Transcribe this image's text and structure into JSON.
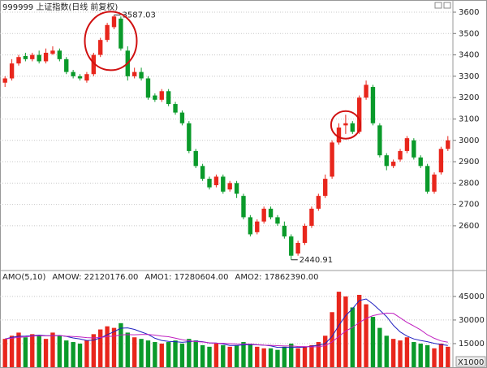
{
  "chart_data": [
    {
      "type": "candlestick",
      "title": "999999 上证指数(日线 前复权)",
      "open": [
        3270,
        3290,
        3360,
        3395,
        3380,
        3400,
        3370,
        3405,
        3420,
        3380,
        3320,
        3300,
        3280,
        3310,
        3400,
        3470,
        3530,
        3570,
        3420,
        3300,
        3320,
        3290,
        3210,
        3190,
        3230,
        3170,
        3130,
        3080,
        2950,
        2880,
        2820,
        2790,
        2830,
        2770,
        2800,
        2740,
        2640,
        2570,
        2620,
        2680,
        2640,
        2600,
        2550,
        2470,
        2520,
        2600,
        2680,
        2740,
        2830,
        2990,
        3070,
        3080,
        3040,
        3200,
        3250,
        3070,
        2930,
        2880,
        2910,
        2950,
        3000,
        2920,
        2880,
        2760,
        2850,
        2960
      ],
      "high": [
        3300,
        3380,
        3400,
        3410,
        3410,
        3420,
        3430,
        3440,
        3430,
        3390,
        3330,
        3310,
        3320,
        3410,
        3480,
        3550,
        3587.03,
        3580,
        3440,
        3340,
        3340,
        3300,
        3220,
        3240,
        3240,
        3180,
        3140,
        3090,
        2960,
        2890,
        2830,
        2840,
        2840,
        2810,
        2810,
        2750,
        2650,
        2630,
        2690,
        2690,
        2650,
        2620,
        2560,
        2530,
        2610,
        2690,
        2750,
        2840,
        3000,
        3080,
        3120,
        3090,
        3210,
        3280,
        3260,
        3080,
        2940,
        2910,
        2960,
        3020,
        3010,
        2930,
        2890,
        2850,
        2970,
        3020
      ],
      "low": [
        3250,
        3280,
        3350,
        3370,
        3370,
        3360,
        3360,
        3400,
        3370,
        3310,
        3290,
        3280,
        3270,
        3300,
        3390,
        3460,
        3520,
        3420,
        3280,
        3290,
        3280,
        3190,
        3180,
        3180,
        3160,
        3120,
        3070,
        2940,
        2870,
        2810,
        2770,
        2780,
        2750,
        2760,
        2730,
        2630,
        2550,
        2560,
        2610,
        2630,
        2600,
        2540,
        2440.91,
        2460,
        2510,
        2590,
        2670,
        2730,
        2820,
        2980,
        3030,
        3030,
        3030,
        3190,
        3070,
        2920,
        2860,
        2870,
        2900,
        2940,
        2910,
        2870,
        2750,
        2750,
        2840,
        2950
      ],
      "close": [
        3290,
        3360,
        3390,
        3380,
        3400,
        3370,
        3410,
        3420,
        3380,
        3320,
        3300,
        3290,
        3310,
        3400,
        3470,
        3540,
        3580,
        3430,
        3300,
        3320,
        3290,
        3200,
        3190,
        3230,
        3170,
        3130,
        3080,
        2950,
        2880,
        2820,
        2780,
        2830,
        2760,
        2800,
        2750,
        2640,
        2560,
        2620,
        2680,
        2640,
        2610,
        2550,
        2460,
        2520,
        2600,
        2680,
        2740,
        2820,
        2990,
        3060,
        3080,
        3040,
        3200,
        3260,
        3080,
        2930,
        2880,
        2900,
        2950,
        3010,
        2920,
        2880,
        2760,
        2840,
        2960,
        3000
      ],
      "up_color": "#e8261c",
      "down_color": "#0a9a2a",
      "ylim": [
        2402,
        3638
      ],
      "yticks": [
        2600,
        2700,
        2800,
        2900,
        3000,
        3100,
        3200,
        3300,
        3400,
        3500,
        3600
      ],
      "grid": true
    },
    {
      "type": "bar",
      "header": [
        "AMO(5,10)",
        "AMOW: 22120176.00",
        "AMO1: 17280604.00",
        "AMO2: 17862390.00"
      ],
      "header_colors": [
        "#222222",
        "#222222",
        "#2020c0",
        "#c020c0"
      ],
      "values": [
        18000,
        20000,
        22000,
        19000,
        21000,
        20000,
        18000,
        22000,
        20000,
        17000,
        16000,
        15000,
        17000,
        21000,
        24000,
        26000,
        25000,
        28000,
        22000,
        19000,
        18000,
        17000,
        16000,
        15000,
        16000,
        17000,
        15000,
        18000,
        17000,
        14000,
        13000,
        15000,
        14000,
        13000,
        14000,
        16000,
        15000,
        13000,
        12000,
        12000,
        11000,
        13000,
        15000,
        12000,
        13000,
        14000,
        16000,
        20000,
        35000,
        48000,
        45000,
        38000,
        46000,
        40000,
        32000,
        25000,
        20000,
        18000,
        17000,
        19000,
        16000,
        15000,
        14000,
        12000,
        15000,
        13000
      ],
      "series": [
        {
          "color": "#2020c0",
          "values": [
            18000,
            19000,
            19700,
            19750,
            20000,
            20400,
            20000,
            20000,
            20200,
            19600,
            18600,
            18000,
            17000,
            17200,
            18600,
            20600,
            22600,
            24800,
            25000,
            24000,
            22400,
            20800,
            18400,
            17000,
            16400,
            16200,
            15800,
            16200,
            16600,
            16200,
            15400,
            15400,
            14800,
            13800,
            13800,
            14200,
            14400,
            14200,
            14000,
            13600,
            12600,
            12600,
            12600,
            12600,
            12800,
            13400,
            14000,
            15000,
            19600,
            26600,
            32800,
            37200,
            42400,
            43400,
            40200,
            36200,
            32200,
            26600,
            22400,
            19800,
            18000,
            17000,
            16200,
            15200,
            14400,
            13800
          ]
        },
        {
          "color": "#c020c0",
          "values": [
            18000,
            18500,
            19000,
            19300,
            19800,
            20000,
            19900,
            20000,
            20100,
            19700,
            19500,
            19200,
            18800,
            18600,
            18900,
            19500,
            19800,
            20500,
            20700,
            20600,
            20800,
            20800,
            20400,
            19800,
            19400,
            18500,
            17500,
            16800,
            16300,
            16000,
            15500,
            15300,
            15200,
            15000,
            14800,
            14700,
            14700,
            14300,
            14000,
            13900,
            13700,
            13500,
            13500,
            13200,
            13100,
            12900,
            13000,
            13700,
            16000,
            19600,
            23000,
            25300,
            28400,
            31000,
            32800,
            33700,
            34400,
            34200,
            31400,
            28500,
            26200,
            23700,
            20600,
            18400,
            16700,
            15900
          ]
        }
      ],
      "ylim": [
        0,
        52700
      ],
      "yticks": [
        15000,
        30000,
        45000
      ],
      "unit_label": "X1000"
    }
  ]
}
